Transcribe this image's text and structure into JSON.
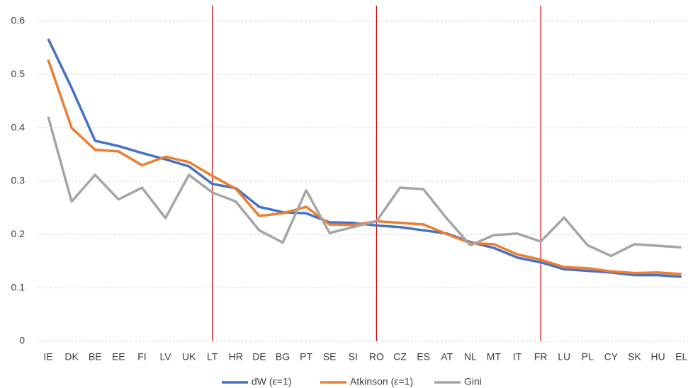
{
  "chart_data": {
    "type": "line",
    "categories": [
      "IE",
      "DK",
      "BE",
      "EE",
      "FI",
      "LV",
      "UK",
      "LT",
      "HR",
      "DE",
      "BG",
      "PT",
      "SE",
      "SI",
      "RO",
      "CZ",
      "ES",
      "AT",
      "NL",
      "MT",
      "IT",
      "FR",
      "LU",
      "PL",
      "CY",
      "SK",
      "HU",
      "EL"
    ],
    "series": [
      {
        "name": "dW (ε=1)",
        "color": "#4472c4",
        "values": [
          0.567,
          0.475,
          0.376,
          0.366,
          0.353,
          0.341,
          0.328,
          0.295,
          0.287,
          0.252,
          0.242,
          0.24,
          0.223,
          0.222,
          0.217,
          0.214,
          0.208,
          0.202,
          0.186,
          0.175,
          0.157,
          0.148,
          0.135,
          0.132,
          0.129,
          0.124,
          0.124,
          0.121
        ]
      },
      {
        "name": "Atkinson (ε=1)",
        "color": "#ed7d31",
        "values": [
          0.528,
          0.4,
          0.359,
          0.356,
          0.33,
          0.346,
          0.336,
          0.31,
          0.286,
          0.235,
          0.24,
          0.252,
          0.219,
          0.218,
          0.225,
          0.222,
          0.219,
          0.201,
          0.184,
          0.182,
          0.163,
          0.153,
          0.139,
          0.137,
          0.131,
          0.128,
          0.129,
          0.126
        ]
      },
      {
        "name": "Gini",
        "color": "#a5a5a5",
        "values": [
          0.421,
          0.262,
          0.312,
          0.266,
          0.288,
          0.231,
          0.312,
          0.279,
          0.262,
          0.208,
          0.185,
          0.283,
          0.203,
          0.214,
          0.225,
          0.288,
          0.285,
          0.23,
          0.18,
          0.199,
          0.202,
          0.187,
          0.232,
          0.18,
          0.16,
          0.182,
          0.179,
          0.176
        ]
      }
    ],
    "ylim": [
      0,
      0.6
    ],
    "yticks": [
      0,
      0.1,
      0.2,
      0.3,
      0.4,
      0.5,
      0.6
    ],
    "grid": true,
    "legend": "bottom",
    "vline_categories": [
      "LT",
      "RO",
      "FR"
    ],
    "vline_color": "#c00000"
  }
}
